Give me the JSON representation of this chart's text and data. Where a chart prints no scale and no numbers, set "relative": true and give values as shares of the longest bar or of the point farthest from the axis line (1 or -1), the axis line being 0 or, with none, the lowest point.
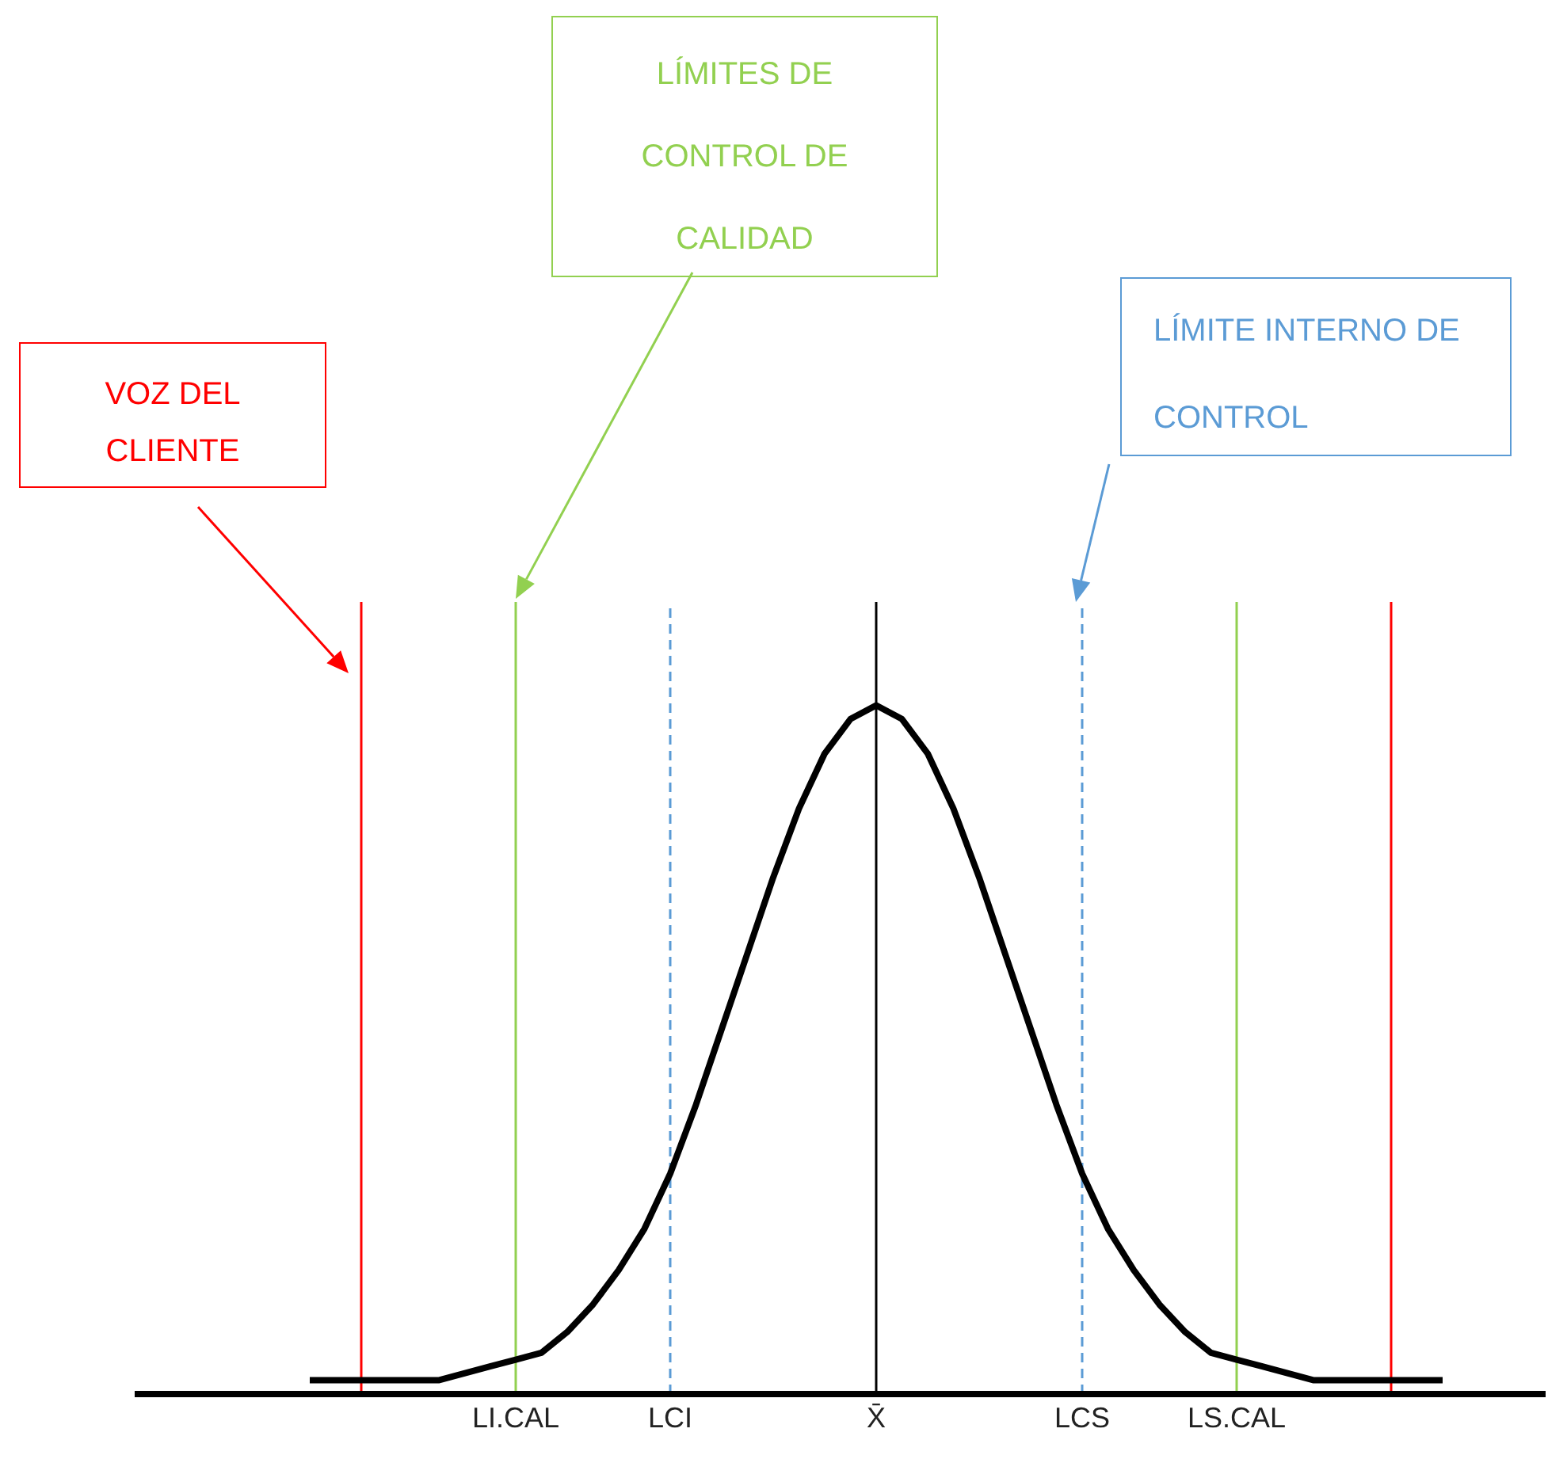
{
  "chart_data": {
    "type": "line",
    "relative": true,
    "categories": [
      null,
      null,
      null,
      null,
      null,
      null,
      null,
      null,
      "LI.CAL",
      null,
      null,
      null,
      null,
      null,
      "LCI",
      null,
      null,
      null,
      null,
      null,
      null,
      null,
      "X̄",
      null,
      null,
      null,
      null,
      null,
      null,
      null,
      "LCS",
      null,
      null,
      null,
      null,
      null,
      "LS.CAL",
      null,
      null,
      null,
      null,
      null,
      null,
      null,
      null
    ],
    "series": [
      {
        "color": "#000000",
        "values": [
          0.02,
          0.02,
          0.02,
          0.02,
          0.02,
          0.02,
          0.03,
          0.04,
          0.05,
          0.06,
          0.09,
          0.13,
          0.18,
          0.24,
          0.32,
          0.42,
          0.53,
          0.64,
          0.75,
          0.85,
          0.93,
          0.98,
          1.0,
          0.98,
          0.93,
          0.85,
          0.75,
          0.64,
          0.53,
          0.42,
          0.32,
          0.24,
          0.18,
          0.13,
          0.09,
          0.06,
          0.05,
          0.04,
          0.03,
          0.02,
          0.02,
          0.02,
          0.02,
          0.02,
          0.02
        ]
      }
    ],
    "tick_labels": "x",
    "annotations": [
      "VOZ DEL CLIENTE",
      "LÍMITES DE CONTROL DE CALIDAD",
      "LÍMITE INTERNO DE CONTROL"
    ],
    "grid": "x",
    "legend": false,
    "marker": "none",
    "line_style": "solid"
  }
}
